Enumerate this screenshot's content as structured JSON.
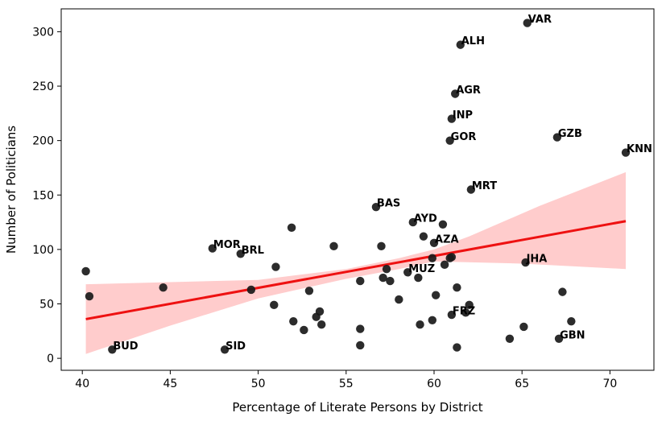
{
  "chart_data": {
    "type": "scatter",
    "xlabel": "Percentage of Literate Persons by District",
    "ylabel": "Number of Politicians",
    "xlim": [
      38.8,
      72.5
    ],
    "ylim": [
      -11,
      321
    ],
    "xticks": [
      40,
      45,
      50,
      55,
      60,
      65,
      70
    ],
    "yticks": [
      0,
      50,
      100,
      150,
      200,
      250,
      300
    ],
    "grid": false,
    "point_color": "#1a1a1a",
    "regression": {
      "color": "#ee1111",
      "band_color": "#ffcccc",
      "x_range": [
        40.2,
        70.9
      ],
      "line": [
        [
          40.2,
          36
        ],
        [
          70.9,
          126
        ]
      ],
      "band_upper": [
        [
          40.2,
          68
        ],
        [
          50,
          72
        ],
        [
          55,
          82
        ],
        [
          58,
          92
        ],
        [
          60,
          100
        ],
        [
          62,
          112
        ],
        [
          66,
          140
        ],
        [
          70.9,
          171
        ]
      ],
      "band_lower": [
        [
          40.2,
          4
        ],
        [
          45,
          30
        ],
        [
          50,
          55
        ],
        [
          55,
          73
        ],
        [
          58,
          82
        ],
        [
          60,
          89
        ],
        [
          65,
          87
        ],
        [
          70.9,
          82
        ]
      ]
    },
    "points": [
      {
        "x": 65.3,
        "y": 308,
        "label": "VAR"
      },
      {
        "x": 61.5,
        "y": 288,
        "label": "ALH"
      },
      {
        "x": 61.2,
        "y": 243,
        "label": "AGR"
      },
      {
        "x": 61.0,
        "y": 220,
        "label": "INP"
      },
      {
        "x": 67.0,
        "y": 203,
        "label": "GZB"
      },
      {
        "x": 60.9,
        "y": 200,
        "label": "GOR"
      },
      {
        "x": 70.9,
        "y": 189,
        "label": "KNN"
      },
      {
        "x": 62.1,
        "y": 155,
        "label": "MRT"
      },
      {
        "x": 56.7,
        "y": 139,
        "label": "BAS"
      },
      {
        "x": 58.8,
        "y": 125,
        "label": "AYD"
      },
      {
        "x": 60.0,
        "y": 106,
        "label": "AZA"
      },
      {
        "x": 47.4,
        "y": 101,
        "label": "MOR"
      },
      {
        "x": 49.0,
        "y": 96,
        "label": "BRL"
      },
      {
        "x": 65.2,
        "y": 88,
        "label": "JHA"
      },
      {
        "x": 58.5,
        "y": 79,
        "label": "MUZ"
      },
      {
        "x": 61.0,
        "y": 40,
        "label": "FRZ"
      },
      {
        "x": 67.1,
        "y": 18,
        "label": "GBN"
      },
      {
        "x": 41.7,
        "y": 8,
        "label": "BUD"
      },
      {
        "x": 48.1,
        "y": 8,
        "label": "SID"
      },
      {
        "x": 40.2,
        "y": 80,
        "label": ""
      },
      {
        "x": 40.4,
        "y": 57,
        "label": ""
      },
      {
        "x": 44.6,
        "y": 65,
        "label": ""
      },
      {
        "x": 49.6,
        "y": 63,
        "label": ""
      },
      {
        "x": 50.9,
        "y": 49,
        "label": ""
      },
      {
        "x": 51.0,
        "y": 84,
        "label": ""
      },
      {
        "x": 51.9,
        "y": 120,
        "label": ""
      },
      {
        "x": 52.0,
        "y": 34,
        "label": ""
      },
      {
        "x": 52.6,
        "y": 26,
        "label": ""
      },
      {
        "x": 52.9,
        "y": 62,
        "label": ""
      },
      {
        "x": 53.3,
        "y": 38,
        "label": ""
      },
      {
        "x": 53.5,
        "y": 43,
        "label": ""
      },
      {
        "x": 53.6,
        "y": 31,
        "label": ""
      },
      {
        "x": 54.3,
        "y": 103,
        "label": ""
      },
      {
        "x": 55.8,
        "y": 71,
        "label": ""
      },
      {
        "x": 55.8,
        "y": 27,
        "label": ""
      },
      {
        "x": 55.8,
        "y": 12,
        "label": ""
      },
      {
        "x": 57.0,
        "y": 103,
        "label": ""
      },
      {
        "x": 57.1,
        "y": 74,
        "label": ""
      },
      {
        "x": 57.3,
        "y": 82,
        "label": ""
      },
      {
        "x": 57.5,
        "y": 71,
        "label": ""
      },
      {
        "x": 58.0,
        "y": 54,
        "label": ""
      },
      {
        "x": 59.1,
        "y": 74,
        "label": ""
      },
      {
        "x": 59.2,
        "y": 31,
        "label": ""
      },
      {
        "x": 59.4,
        "y": 112,
        "label": ""
      },
      {
        "x": 59.9,
        "y": 35,
        "label": ""
      },
      {
        "x": 59.9,
        "y": 92,
        "label": ""
      },
      {
        "x": 60.1,
        "y": 58,
        "label": ""
      },
      {
        "x": 60.5,
        "y": 123,
        "label": ""
      },
      {
        "x": 60.6,
        "y": 86,
        "label": ""
      },
      {
        "x": 60.9,
        "y": 92,
        "label": ""
      },
      {
        "x": 61.0,
        "y": 93,
        "label": ""
      },
      {
        "x": 61.3,
        "y": 65,
        "label": ""
      },
      {
        "x": 61.3,
        "y": 10,
        "label": ""
      },
      {
        "x": 61.8,
        "y": 42,
        "label": ""
      },
      {
        "x": 62.0,
        "y": 49,
        "label": ""
      },
      {
        "x": 64.3,
        "y": 18,
        "label": ""
      },
      {
        "x": 65.1,
        "y": 29,
        "label": ""
      },
      {
        "x": 67.3,
        "y": 61,
        "label": ""
      },
      {
        "x": 67.8,
        "y": 34,
        "label": ""
      }
    ]
  }
}
